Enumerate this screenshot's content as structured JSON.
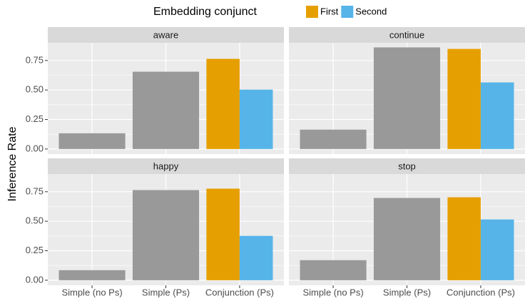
{
  "chart_data": {
    "type": "bar",
    "legend_title": "Embedding conjunct",
    "ylabel": "Inference Rate",
    "categories": [
      "Simple (no Ps)",
      "Simple (Ps)",
      "Conjunction (Ps)"
    ],
    "color": "#999999",
    "series": [
      {
        "name": "First",
        "color": "#E69F00"
      },
      {
        "name": "Second",
        "color": "#56B4E9"
      }
    ],
    "facets": [
      {
        "title": "aware",
        "values": [
          0.133,
          0.655
        ],
        "series_values": [
          0.764,
          0.503
        ]
      },
      {
        "title": "continue",
        "values": [
          0.164,
          0.861
        ],
        "series_values": [
          0.848,
          0.564
        ]
      },
      {
        "title": "happy",
        "values": [
          0.085,
          0.764
        ],
        "series_values": [
          0.776,
          0.376
        ]
      },
      {
        "title": "stop",
        "values": [
          0.17,
          0.697
        ],
        "series_values": [
          0.703,
          0.515
        ]
      }
    ],
    "ylim": [
      -0.043,
      0.9
    ],
    "yticks": [
      {
        "value": 0,
        "label": "0.00"
      },
      {
        "value": 0.25,
        "label": "0.25"
      },
      {
        "value": 0.5,
        "label": "0.50"
      },
      {
        "value": 0.75,
        "label": "0.75"
      }
    ],
    "grid": true
  }
}
